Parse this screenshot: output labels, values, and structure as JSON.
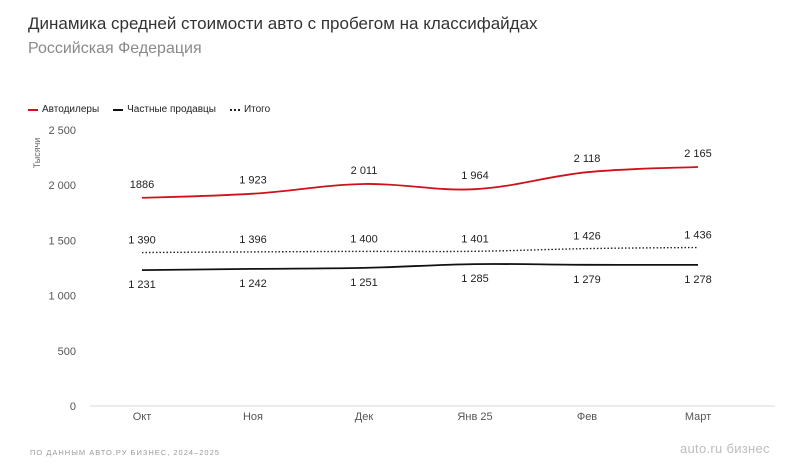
{
  "header": {
    "title": "Динамика средней стоимости авто с пробегом на классифайдах",
    "subtitle": "Российская Федерация"
  },
  "legend": {
    "items": [
      {
        "label": "Автодилеры",
        "color": "#d0111b",
        "style": "solid"
      },
      {
        "label": "Частные продавцы",
        "color": "#111111",
        "style": "solid"
      },
      {
        "label": "Итого",
        "color": "#222222",
        "style": "dotted"
      }
    ]
  },
  "footer": {
    "source": "ПО ДАННЫМ АВТО.РУ БИЗНЕС, 2024–2025",
    "brand": "auto.ru бизнес"
  },
  "chart_data": {
    "type": "line",
    "title": "Динамика средней стоимости авто с пробегом на классифайдах",
    "subtitle": "Российская Федерация",
    "xlabel": "",
    "ylabel": "Тысячи",
    "ylim": [
      0,
      2500
    ],
    "yticks": [
      0,
      500,
      1000,
      1500,
      2000,
      2500
    ],
    "ytick_labels": [
      "0",
      "500",
      "1 000",
      "1 500",
      "2 000",
      "2 500"
    ],
    "categories": [
      "Окт",
      "Ноя",
      "Дек",
      "Янв 25",
      "Фев",
      "Март"
    ],
    "grid": false,
    "legend_position": "top-left",
    "series": [
      {
        "name": "Автодилеры",
        "color": "#d0111b",
        "style": "solid",
        "values": [
          1886,
          1923,
          2011,
          1964,
          2118,
          2165
        ],
        "labels": [
          "1886",
          "1 923",
          "2 011",
          "1 964",
          "2 118",
          "2 165"
        ]
      },
      {
        "name": "Итого",
        "color": "#222222",
        "style": "dotted",
        "values": [
          1390,
          1396,
          1400,
          1401,
          1426,
          1436
        ],
        "labels": [
          "1 390",
          "1 396",
          "1 400",
          "1 401",
          "1 426",
          "1 436"
        ]
      },
      {
        "name": "Частные продавцы",
        "color": "#111111",
        "style": "solid",
        "values": [
          1231,
          1242,
          1251,
          1285,
          1279,
          1278
        ],
        "labels": [
          "1 231",
          "1 242",
          "1 251",
          "1 285",
          "1 279",
          "1 278"
        ]
      }
    ]
  }
}
